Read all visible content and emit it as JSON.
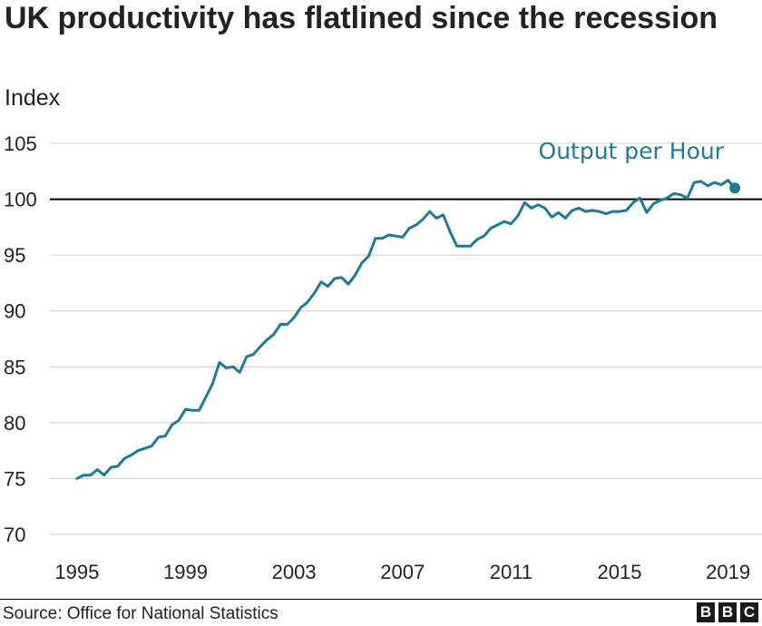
{
  "chart_data": {
    "type": "line",
    "title": "UK productivity has flatlined since the recession",
    "ylabel": "Index",
    "ylim": [
      70,
      105
    ],
    "yticks": [
      105,
      100,
      95,
      90,
      85,
      80,
      75,
      70
    ],
    "xticks": [
      1995,
      1999,
      2003,
      2007,
      2011,
      2015,
      2019
    ],
    "xlim": [
      1994.0,
      2020.25
    ],
    "reference_line": 100,
    "grid": true,
    "series": [
      {
        "name": "Output per Hour",
        "color": "#1b7c9a",
        "x": [
          1995.0,
          1995.25,
          1995.5,
          1995.75,
          1996.0,
          1996.25,
          1996.5,
          1996.75,
          1997.0,
          1997.25,
          1997.5,
          1997.75,
          1998.0,
          1998.25,
          1998.5,
          1998.75,
          1999.0,
          1999.25,
          1999.5,
          1999.75,
          2000.0,
          2000.25,
          2000.5,
          2000.75,
          2001.0,
          2001.25,
          2001.5,
          2001.75,
          2002.0,
          2002.25,
          2002.5,
          2002.75,
          2003.0,
          2003.25,
          2003.5,
          2003.75,
          2004.0,
          2004.25,
          2004.5,
          2004.75,
          2005.0,
          2005.25,
          2005.5,
          2005.75,
          2006.0,
          2006.25,
          2006.5,
          2006.75,
          2007.0,
          2007.25,
          2007.5,
          2007.75,
          2008.0,
          2008.25,
          2008.5,
          2008.75,
          2009.0,
          2009.25,
          2009.5,
          2009.75,
          2010.0,
          2010.25,
          2010.5,
          2010.75,
          2011.0,
          2011.25,
          2011.5,
          2011.75,
          2012.0,
          2012.25,
          2012.5,
          2012.75,
          2013.0,
          2013.25,
          2013.5,
          2013.75,
          2014.0,
          2014.25,
          2014.5,
          2014.75,
          2015.0,
          2015.25,
          2015.5,
          2015.75,
          2016.0,
          2016.25,
          2016.5,
          2016.75,
          2017.0,
          2017.25,
          2017.5,
          2017.75,
          2018.0,
          2018.25,
          2018.5,
          2018.75,
          2019.0,
          2019.25
        ],
        "values": [
          75.0,
          75.3,
          75.3,
          75.8,
          75.3,
          76.0,
          76.1,
          76.8,
          77.1,
          77.5,
          77.7,
          77.9,
          78.7,
          78.8,
          79.8,
          80.2,
          81.2,
          81.1,
          81.1,
          82.3,
          83.5,
          85.4,
          84.9,
          85.0,
          84.5,
          85.9,
          86.1,
          86.8,
          87.4,
          87.9,
          88.8,
          88.8,
          89.4,
          90.3,
          90.8,
          91.6,
          92.6,
          92.2,
          92.9,
          93.0,
          92.4,
          93.2,
          94.3,
          94.9,
          96.5,
          96.5,
          96.8,
          96.7,
          96.6,
          97.4,
          97.7,
          98.2,
          98.9,
          98.3,
          98.6,
          97.1,
          95.8,
          95.8,
          95.8,
          96.4,
          96.7,
          97.4,
          97.7,
          98.0,
          97.8,
          98.5,
          99.7,
          99.2,
          99.5,
          99.2,
          98.4,
          98.8,
          98.3,
          99.0,
          99.2,
          98.9,
          99.0,
          98.9,
          98.7,
          98.9,
          98.9,
          99.0,
          99.7,
          100.1,
          98.8,
          99.6,
          99.9,
          100.1,
          100.5,
          100.4,
          100.1,
          101.5,
          101.6,
          101.2,
          101.5,
          101.3,
          101.7,
          101.0
        ]
      }
    ],
    "annotations": [
      "Output per Hour"
    ]
  },
  "footer": {
    "source": "Source: Office for National Statistics",
    "logo_letters": [
      "B",
      "B",
      "C"
    ]
  }
}
